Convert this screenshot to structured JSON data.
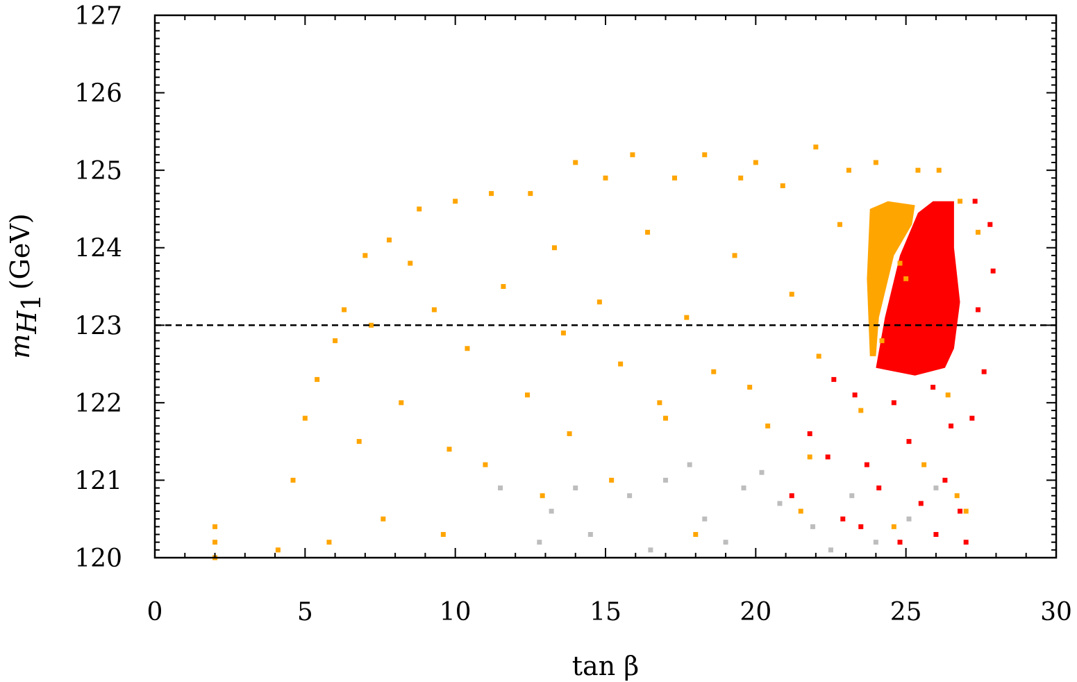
{
  "chart_data": {
    "type": "scatter",
    "xlabel": "tan β",
    "ylabel_symbol": "m",
    "ylabel_subscript": "H",
    "ylabel_subsubscript": "1",
    "ylabel_unit": "(GeV)",
    "xlim": [
      0,
      30
    ],
    "ylim": [
      120,
      127
    ],
    "x_ticks": [
      "0",
      "5",
      "10",
      "15",
      "20",
      "25",
      "30"
    ],
    "y_ticks": [
      "120",
      "121",
      "122",
      "123",
      "124",
      "125",
      "126",
      "127"
    ],
    "reference_line": {
      "y": 123,
      "style": "dashed"
    },
    "grid": false,
    "legend": "none",
    "colors": {
      "gray": "#bdbdbd",
      "orange": "#ffa500",
      "red": "#ff0000"
    },
    "series": [
      {
        "color": "#bdbdbd",
        "points": [
          [
            11.5,
            120.9
          ],
          [
            13.2,
            120.6
          ],
          [
            14.5,
            120.3
          ],
          [
            15.8,
            120.8
          ],
          [
            17.0,
            121.0
          ],
          [
            18.3,
            120.5
          ],
          [
            19.6,
            120.9
          ],
          [
            20.8,
            120.7
          ],
          [
            21.9,
            120.4
          ],
          [
            23.2,
            120.8
          ],
          [
            24.0,
            120.2
          ],
          [
            25.1,
            120.5
          ],
          [
            26.0,
            120.9
          ],
          [
            16.5,
            120.1
          ],
          [
            19.0,
            120.2
          ],
          [
            22.5,
            120.1
          ],
          [
            12.8,
            120.2
          ],
          [
            20.2,
            121.1
          ],
          [
            17.8,
            121.2
          ],
          [
            14.0,
            120.9
          ]
        ]
      },
      {
        "color": "#ffa500",
        "points": [
          [
            2.0,
            120.4
          ],
          [
            2.0,
            120.2
          ],
          [
            2.0,
            120.0
          ],
          [
            4.1,
            120.1
          ],
          [
            5.0,
            121.8
          ],
          [
            6.3,
            123.2
          ],
          [
            7.0,
            123.9
          ],
          [
            7.8,
            124.1
          ],
          [
            8.8,
            124.5
          ],
          [
            10.0,
            124.6
          ],
          [
            11.2,
            124.7
          ],
          [
            12.5,
            124.7
          ],
          [
            14.0,
            125.1
          ],
          [
            15.0,
            124.9
          ],
          [
            15.9,
            125.2
          ],
          [
            17.3,
            124.9
          ],
          [
            18.3,
            125.2
          ],
          [
            19.5,
            124.9
          ],
          [
            20.0,
            125.1
          ],
          [
            20.9,
            124.8
          ],
          [
            22.0,
            125.3
          ],
          [
            23.1,
            125.0
          ],
          [
            24.0,
            125.1
          ],
          [
            25.4,
            125.0
          ],
          [
            26.1,
            125.0
          ],
          [
            26.8,
            124.6
          ],
          [
            27.4,
            124.2
          ],
          [
            4.6,
            121.0
          ],
          [
            5.4,
            122.3
          ],
          [
            6.0,
            122.8
          ],
          [
            7.2,
            123.0
          ],
          [
            8.5,
            123.8
          ],
          [
            9.3,
            123.2
          ],
          [
            10.4,
            122.7
          ],
          [
            11.6,
            123.5
          ],
          [
            12.4,
            122.1
          ],
          [
            13.3,
            124.0
          ],
          [
            13.8,
            121.6
          ],
          [
            14.8,
            123.3
          ],
          [
            15.5,
            122.5
          ],
          [
            16.4,
            124.2
          ],
          [
            17.0,
            121.8
          ],
          [
            17.7,
            123.1
          ],
          [
            18.6,
            122.4
          ],
          [
            19.3,
            123.9
          ],
          [
            20.4,
            121.7
          ],
          [
            21.2,
            123.4
          ],
          [
            22.1,
            122.6
          ],
          [
            22.8,
            124.3
          ],
          [
            23.5,
            121.9
          ],
          [
            24.2,
            122.8
          ],
          [
            24.8,
            123.8
          ],
          [
            25.6,
            121.2
          ],
          [
            26.4,
            122.1
          ],
          [
            27.0,
            120.6
          ],
          [
            5.8,
            120.2
          ],
          [
            7.6,
            120.5
          ],
          [
            9.6,
            120.3
          ],
          [
            11.0,
            121.2
          ],
          [
            12.9,
            120.8
          ],
          [
            15.2,
            121.0
          ],
          [
            18.0,
            120.3
          ],
          [
            21.5,
            120.6
          ],
          [
            24.6,
            120.4
          ],
          [
            26.7,
            120.8
          ],
          [
            6.8,
            121.5
          ],
          [
            8.2,
            122.0
          ],
          [
            9.8,
            121.4
          ],
          [
            13.6,
            122.9
          ],
          [
            16.8,
            122.0
          ],
          [
            19.8,
            122.2
          ],
          [
            21.8,
            121.3
          ],
          [
            23.9,
            124.3
          ],
          [
            24.5,
            124.0
          ],
          [
            25.0,
            123.6
          ]
        ]
      },
      {
        "color": "#ff0000",
        "points": [
          [
            21.2,
            120.8
          ],
          [
            21.8,
            121.6
          ],
          [
            22.4,
            121.3
          ],
          [
            22.9,
            120.5
          ],
          [
            23.3,
            122.1
          ],
          [
            23.7,
            121.2
          ],
          [
            24.1,
            120.9
          ],
          [
            24.6,
            122.0
          ],
          [
            25.1,
            121.5
          ],
          [
            25.5,
            120.7
          ],
          [
            25.9,
            122.2
          ],
          [
            26.3,
            121.0
          ],
          [
            26.8,
            120.6
          ],
          [
            27.2,
            121.8
          ],
          [
            27.6,
            122.4
          ],
          [
            27.4,
            123.2
          ],
          [
            27.8,
            124.3
          ],
          [
            27.9,
            123.7
          ],
          [
            27.3,
            124.6
          ],
          [
            26.0,
            120.3
          ],
          [
            24.8,
            120.2
          ],
          [
            23.5,
            120.4
          ],
          [
            27.0,
            120.2
          ],
          [
            22.6,
            122.3
          ],
          [
            26.5,
            121.7
          ]
        ]
      }
    ],
    "regions": [
      {
        "color": "#ffa500",
        "polygon": [
          [
            23.8,
            122.6
          ],
          [
            23.7,
            123.6
          ],
          [
            23.8,
            124.5
          ],
          [
            24.4,
            124.6
          ],
          [
            25.3,
            124.55
          ],
          [
            25.2,
            124.3
          ],
          [
            24.6,
            123.9
          ],
          [
            24.1,
            123.1
          ],
          [
            24.0,
            122.6
          ]
        ]
      },
      {
        "color": "#ff0000",
        "polygon": [
          [
            24.0,
            122.45
          ],
          [
            24.3,
            123.1
          ],
          [
            24.8,
            123.9
          ],
          [
            25.4,
            124.45
          ],
          [
            25.9,
            124.6
          ],
          [
            26.6,
            124.6
          ],
          [
            26.6,
            124.0
          ],
          [
            26.8,
            123.3
          ],
          [
            26.6,
            122.7
          ],
          [
            26.3,
            122.45
          ],
          [
            25.3,
            122.35
          ]
        ]
      }
    ]
  }
}
